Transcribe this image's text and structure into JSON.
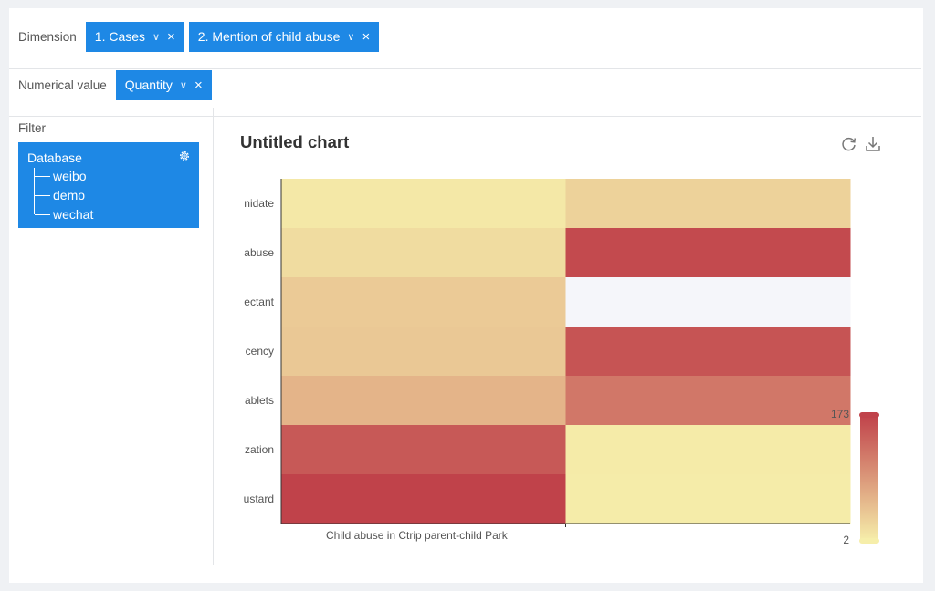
{
  "dimension": {
    "label": "Dimension",
    "chips": [
      {
        "label": "1. Cases"
      },
      {
        "label": "2. Mention of child abuse"
      }
    ]
  },
  "numerical": {
    "label": "Numerical value",
    "chips": [
      {
        "label": "Quantity"
      }
    ]
  },
  "filter": {
    "label": "Filter",
    "database": "Database",
    "items": [
      "weibo",
      "demo",
      "wechat"
    ]
  },
  "chart": {
    "title": "Untitled chart",
    "toolbar": [
      "refresh-icon",
      "download-icon"
    ]
  },
  "colors": {
    "accent": "#1e88e5",
    "scale_low": "#f6eeaa",
    "scale_high": "#c0424a",
    "empty_cell": "#f5f6fa"
  },
  "chart_data": {
    "type": "heatmap",
    "title": "Untitled chart",
    "x_tick_label": "Child abuse in Ctrip parent-child Park",
    "y_tick_labels": [
      "nidate",
      "abuse",
      "ectant",
      "cency",
      "ablets",
      "zation",
      "ustard"
    ],
    "cells": [
      [
        8,
        30
      ],
      [
        20,
        165
      ],
      [
        38,
        null
      ],
      [
        40,
        155
      ],
      [
        60,
        120
      ],
      [
        150,
        5
      ],
      [
        173,
        4
      ]
    ],
    "visual_map": {
      "min": 2,
      "max": 173
    }
  }
}
